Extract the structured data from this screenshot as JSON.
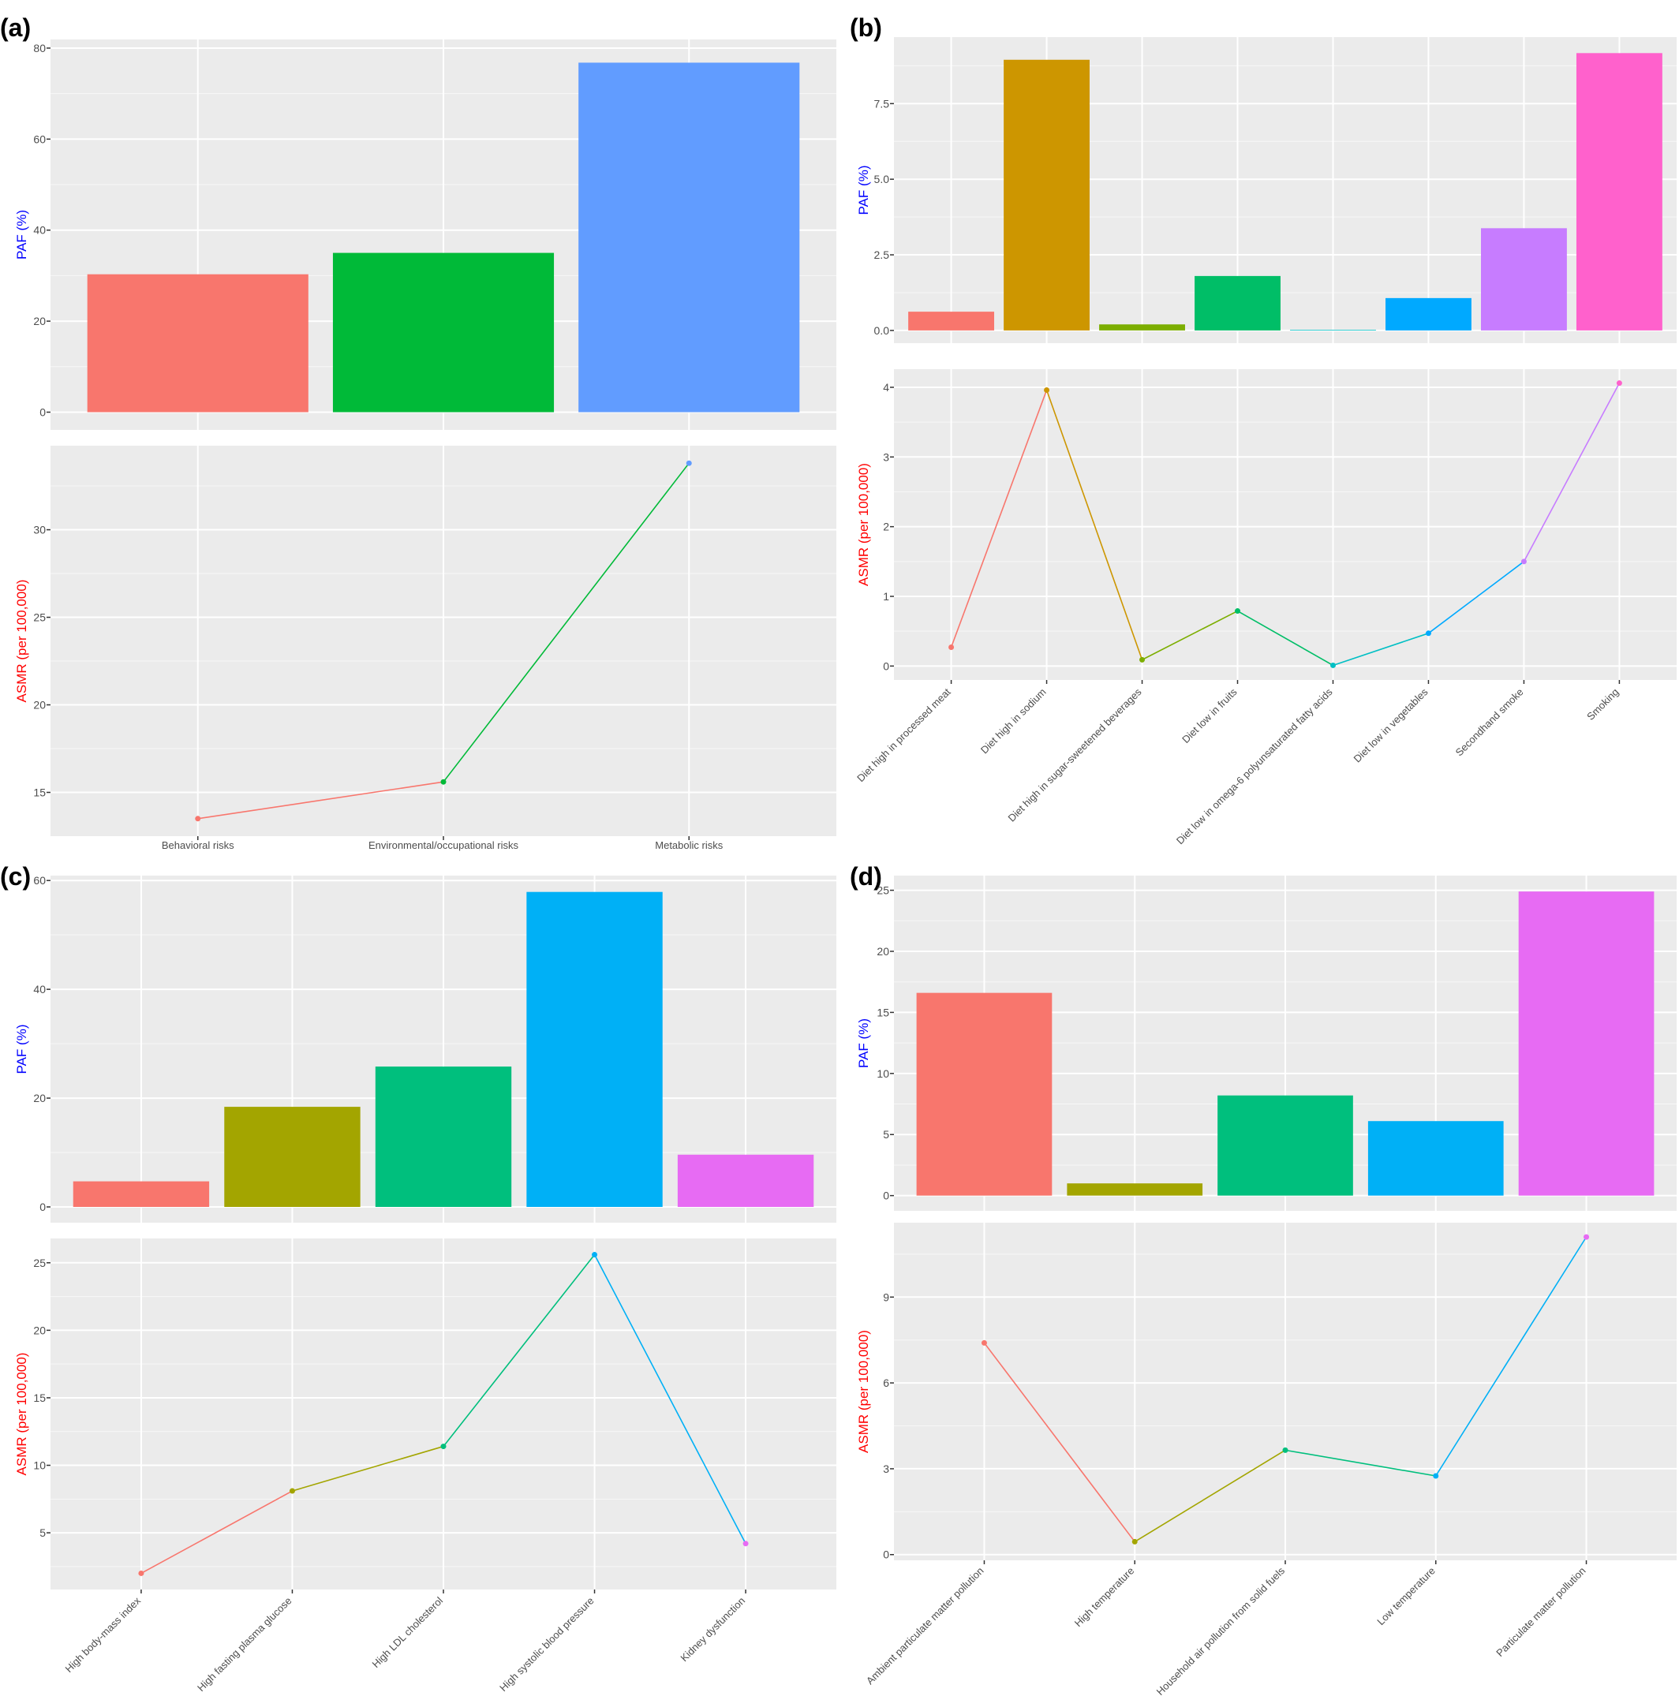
{
  "panel_letters": [
    "(a)",
    "(b)",
    "(c)",
    "(d)"
  ],
  "colors": {
    "panel_bg": "#ebebeb",
    "gridline": "#ffffff",
    "tick_text": "#4d4d4d",
    "paf_axis_label": "#0000ff",
    "asmr_axis_label": "#ff0000"
  },
  "chart_data": [
    {
      "panel": "(a)",
      "type": "bar+line",
      "categories": [
        "Behavioral risks",
        "Environmental/occupational risks",
        "Metabolic risks"
      ],
      "colors": [
        "#f8766d",
        "#00ba38",
        "#619cff"
      ],
      "x_label_rotation": 0,
      "paf": {
        "ylabel": "PAF (%)",
        "values": [
          30.3,
          35.0,
          76.8
        ],
        "ylim": [
          -3.9,
          81.9
        ],
        "ticks": [
          0,
          20,
          40,
          60,
          80
        ]
      },
      "asmr": {
        "ylabel": "ASMR (per 100,000)",
        "values": [
          13.5,
          15.6,
          33.8
        ],
        "ylim": [
          12.5,
          34.8
        ],
        "ticks": [
          15,
          20,
          25,
          30
        ]
      },
      "grid": true
    },
    {
      "panel": "(b)",
      "type": "bar+line",
      "categories": [
        "Diet high in processed meat",
        "Diet high in sodium",
        "Diet high in sugar-sweetened beverages",
        "Diet low in fruits",
        "Diet low in omega-6 polyunsaturated fatty acids",
        "Diet low in vegetables",
        "Secondhand smoke",
        "Smoking"
      ],
      "colors": [
        "#f8766d",
        "#cd9600",
        "#7cae00",
        "#00be67",
        "#00bfc4",
        "#00a9ff",
        "#c77cff",
        "#ff61cc"
      ],
      "x_label_rotation": -45,
      "paf": {
        "ylabel": "PAF (%)",
        "values": [
          0.62,
          8.95,
          0.2,
          1.8,
          0.02,
          1.07,
          3.38,
          9.17
        ],
        "ylim": [
          -0.42,
          9.7
        ],
        "ticks": [
          0.0,
          2.5,
          5.0,
          7.5
        ],
        "tick_labels": [
          "0.0",
          "2.5",
          "5.0",
          "7.5"
        ]
      },
      "asmr": {
        "ylabel": "ASMR (per 100,000)",
        "values": [
          0.27,
          3.96,
          0.09,
          0.79,
          0.01,
          0.47,
          1.5,
          4.06
        ],
        "ylim": [
          -0.2,
          4.26
        ],
        "ticks": [
          0,
          1,
          2,
          3,
          4
        ]
      },
      "grid": true
    },
    {
      "panel": "(c)",
      "type": "bar+line",
      "categories": [
        "High body-mass index",
        "High fasting plasma glucose",
        "High LDL cholesterol",
        "High systolic blood pressure",
        "Kidney dysfunction"
      ],
      "colors": [
        "#f8766d",
        "#a3a500",
        "#00bf7d",
        "#00b0f6",
        "#e76bf3"
      ],
      "x_label_rotation": -45,
      "paf": {
        "ylabel": "PAF (%)",
        "values": [
          4.7,
          18.4,
          25.8,
          57.9,
          9.6
        ],
        "ylim": [
          -2.9,
          60.9
        ],
        "ticks": [
          0,
          20,
          40,
          60
        ]
      },
      "asmr": {
        "ylabel": "ASMR (per 100,000)",
        "values": [
          2.0,
          8.1,
          11.4,
          25.6,
          4.2
        ],
        "ylim": [
          0.8,
          26.8
        ],
        "ticks": [
          5,
          10,
          15,
          20,
          25
        ]
      },
      "grid": true
    },
    {
      "panel": "(d)",
      "type": "bar+line",
      "categories": [
        "Ambient particulate matter pollution",
        "High temperature",
        "Household air pollution from solid fuels",
        "Low temperature",
        "Particulate matter pollution"
      ],
      "colors": [
        "#f8766d",
        "#a3a500",
        "#00bf7d",
        "#00b0f6",
        "#e76bf3"
      ],
      "x_label_rotation": -45,
      "paf": {
        "ylabel": "PAF (%)",
        "values": [
          16.6,
          1.0,
          8.2,
          6.1,
          24.9
        ],
        "ylim": [
          -1.25,
          26.2
        ],
        "ticks": [
          0,
          5,
          10,
          15,
          20,
          25
        ]
      },
      "asmr": {
        "ylabel": "ASMR (per 100,000)",
        "values": [
          7.4,
          0.45,
          3.65,
          2.75,
          11.1
        ],
        "ylim": [
          -0.2,
          11.6
        ],
        "ticks": [
          0,
          3,
          6,
          9
        ]
      },
      "grid": true
    }
  ]
}
